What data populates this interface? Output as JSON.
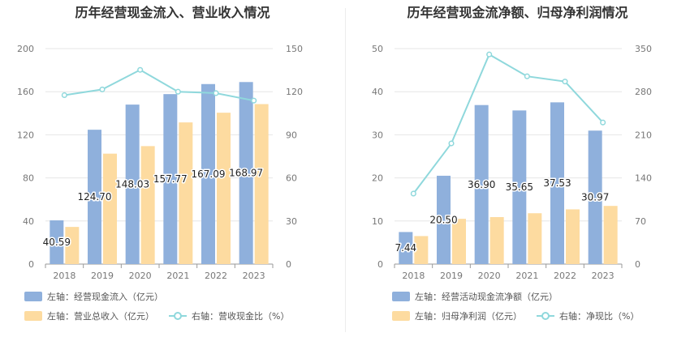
{
  "chart_data": [
    {
      "type": "bar",
      "title": "历年经营现金流入、营业收入情况",
      "categories": [
        "2018",
        "2019",
        "2020",
        "2021",
        "2022",
        "2023"
      ],
      "left_axis": {
        "ylim": [
          0,
          200
        ],
        "ticks": [
          "0",
          "40",
          "80",
          "120",
          "160",
          "200"
        ]
      },
      "right_axis": {
        "ylim": [
          0,
          150
        ],
        "ticks": [
          "0",
          "30",
          "60",
          "90",
          "120",
          "150"
        ]
      },
      "series": [
        {
          "name": "左轴：经营现金流入（亿元）",
          "axis": "left",
          "kind": "bar",
          "color": "#8fb0dc",
          "values": [
            40.59,
            124.7,
            148.03,
            157.77,
            167.09,
            168.97
          ],
          "labels": [
            "40.59",
            "124.70",
            "148.03",
            "157.77",
            "167.09",
            "168.97"
          ]
        },
        {
          "name": "左轴：营业总收入（亿元）",
          "axis": "left",
          "kind": "bar",
          "color": "#fddba0",
          "values": [
            34.5,
            102.5,
            109.5,
            131.5,
            140.5,
            148.5
          ]
        },
        {
          "name": "右轴：营收现金比（%）",
          "axis": "right",
          "kind": "line",
          "color": "#8fd8dc",
          "values": [
            117.6,
            121.6,
            135.2,
            120.0,
            119.0,
            113.8
          ]
        }
      ]
    },
    {
      "type": "bar",
      "title": "历年经营现金流净额、归母净利润情况",
      "categories": [
        "2018",
        "2019",
        "2020",
        "2021",
        "2022",
        "2023"
      ],
      "left_axis": {
        "ylim": [
          0,
          50
        ],
        "ticks": [
          "0",
          "10",
          "20",
          "30",
          "40",
          "50"
        ]
      },
      "right_axis": {
        "ylim": [
          0,
          350
        ],
        "ticks": [
          "0",
          "70",
          "140",
          "210",
          "280",
          "350"
        ]
      },
      "series": [
        {
          "name": "左轴：经营活动现金流净额（亿元）",
          "axis": "left",
          "kind": "bar",
          "color": "#8fb0dc",
          "values": [
            7.44,
            20.5,
            36.9,
            35.65,
            37.53,
            30.97
          ],
          "labels": [
            "7.44",
            "20.50",
            "36.90",
            "35.65",
            "37.53",
            "30.97"
          ]
        },
        {
          "name": "左轴：归母净利润（亿元）",
          "axis": "left",
          "kind": "bar",
          "color": "#fddba0",
          "values": [
            6.5,
            10.5,
            10.9,
            11.8,
            12.7,
            13.5
          ]
        },
        {
          "name": "右轴：净现比（%）",
          "axis": "right",
          "kind": "line",
          "color": "#8fd8dc",
          "values": [
            114.5,
            196.0,
            340.5,
            305.0,
            296.5,
            230.0
          ]
        }
      ]
    }
  ]
}
